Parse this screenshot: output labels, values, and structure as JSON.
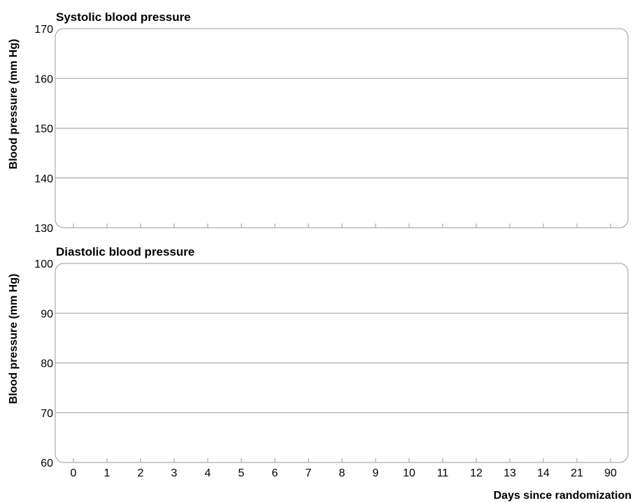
{
  "chart_data": [
    {
      "type": "line",
      "title": "Systolic blood pressure",
      "ylabel": "Blood pressure (mm Hg)",
      "xlabel": "",
      "ylim": [
        130,
        170
      ],
      "yticks": [
        130,
        140,
        150,
        160,
        170
      ],
      "categories": [
        "0",
        "1",
        "2",
        "3",
        "4",
        "5",
        "6",
        "7",
        "8",
        "9",
        "10",
        "11",
        "12",
        "13",
        "14",
        "21",
        "90"
      ],
      "grid": true,
      "series": []
    },
    {
      "type": "line",
      "title": "Diastolic blood pressure",
      "ylabel": "Blood pressure (mm Hg)",
      "xlabel": "Days since randomization",
      "ylim": [
        60,
        100
      ],
      "yticks": [
        60,
        70,
        80,
        90,
        100
      ],
      "categories": [
        "0",
        "1",
        "2",
        "3",
        "4",
        "5",
        "6",
        "7",
        "8",
        "9",
        "10",
        "11",
        "12",
        "13",
        "14",
        "21",
        "90"
      ],
      "grid": true,
      "series": []
    }
  ]
}
